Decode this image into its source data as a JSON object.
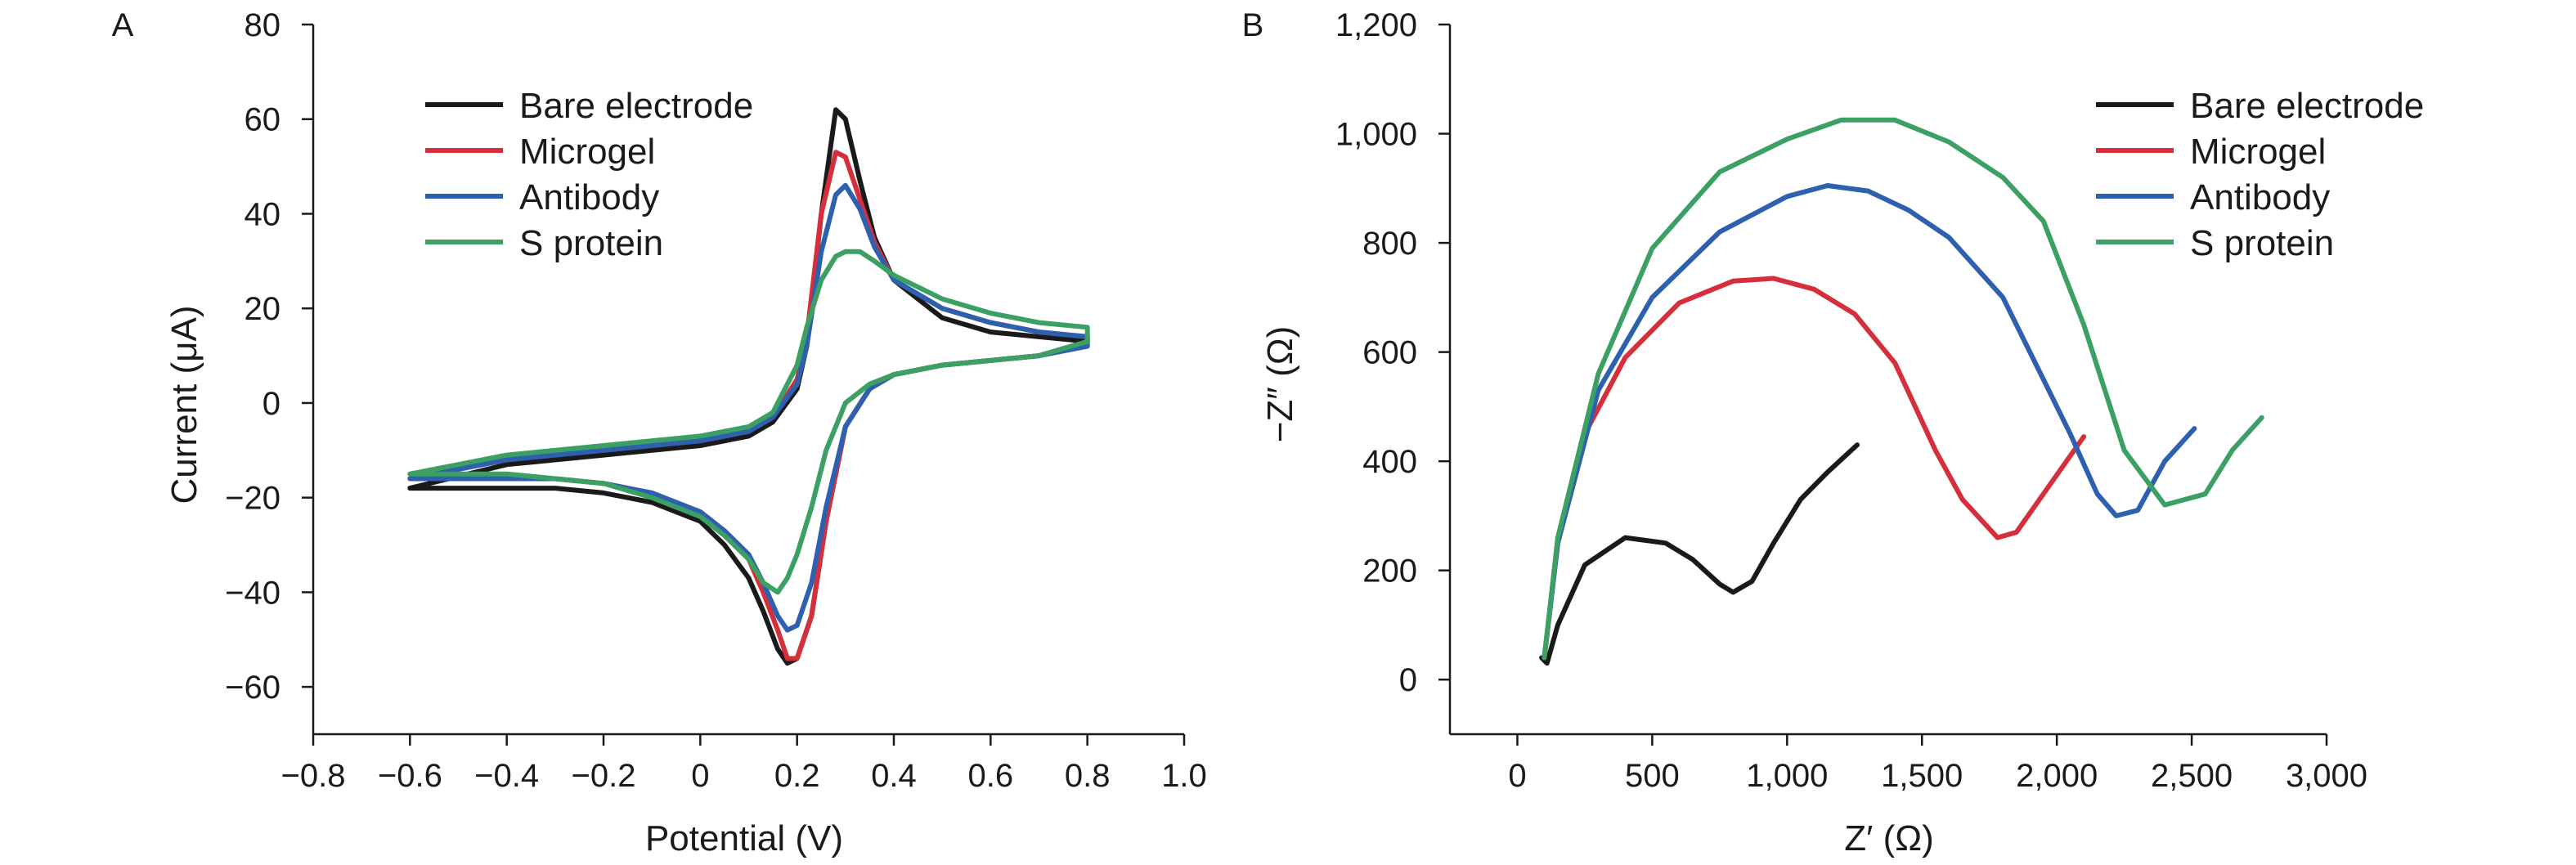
{
  "chart_data": [
    {
      "panel": "A",
      "type": "line",
      "xlabel": "Potential (V)",
      "ylabel": "Current (μA)",
      "xlim": [
        -0.8,
        1.0
      ],
      "ylim": [
        -70,
        80
      ],
      "xticks": [
        -0.8,
        -0.6,
        -0.4,
        -0.2,
        0,
        0.2,
        0.4,
        0.6,
        0.8,
        1.0
      ],
      "xtick_labels": [
        "−0.8",
        "−0.6",
        "−0.4",
        "−0.2",
        "0",
        "0.2",
        "0.4",
        "0.6",
        "0.8",
        "1.0"
      ],
      "yticks": [
        -60,
        -40,
        -20,
        0,
        20,
        40,
        60,
        80
      ],
      "ytick_labels": [
        "−60",
        "−40",
        "−20",
        "0",
        "20",
        "40",
        "60",
        "80"
      ],
      "grid": false,
      "legend_position": "top-left",
      "series": [
        {
          "name": "Bare electrode",
          "color": "#1a1a1a",
          "x": [
            -0.6,
            -0.4,
            -0.2,
            0,
            0.1,
            0.15,
            0.2,
            0.22,
            0.25,
            0.28,
            0.3,
            0.33,
            0.36,
            0.4,
            0.5,
            0.6,
            0.7,
            0.8,
            0.8,
            0.7,
            0.6,
            0.5,
            0.4,
            0.35,
            0.3,
            0.26,
            0.23,
            0.2,
            0.18,
            0.16,
            0.13,
            0.1,
            0.05,
            0,
            -0.1,
            -0.2,
            -0.3,
            -0.4,
            -0.5,
            -0.6
          ],
          "y": [
            -18,
            -13,
            -11,
            -9,
            -7,
            -4,
            3,
            12,
            40,
            62,
            60,
            47,
            35,
            26,
            18,
            15,
            14,
            13,
            13,
            10,
            9,
            8,
            6,
            3,
            -5,
            -25,
            -45,
            -54,
            -55,
            -52,
            -44,
            -37,
            -30,
            -25,
            -21,
            -19,
            -18,
            -18,
            -18,
            -18
          ]
        },
        {
          "name": "Microgel",
          "color": "#d62f3c",
          "x": [
            -0.6,
            -0.4,
            -0.2,
            0,
            0.1,
            0.15,
            0.2,
            0.22,
            0.25,
            0.28,
            0.3,
            0.33,
            0.36,
            0.4,
            0.5,
            0.6,
            0.7,
            0.8,
            0.8,
            0.7,
            0.6,
            0.5,
            0.4,
            0.35,
            0.3,
            0.26,
            0.23,
            0.2,
            0.18,
            0.16,
            0.13,
            0.1,
            0.05,
            0,
            -0.1,
            -0.2,
            -0.3,
            -0.4,
            -0.5,
            -0.6
          ],
          "y": [
            -16,
            -12,
            -10,
            -8,
            -6,
            -3,
            5,
            14,
            40,
            53,
            52,
            43,
            34,
            26,
            20,
            17,
            15,
            14,
            13,
            10,
            9,
            8,
            6,
            3,
            -5,
            -25,
            -45,
            -54,
            -54,
            -48,
            -40,
            -33,
            -27,
            -23,
            -19,
            -17,
            -16,
            -16,
            -16,
            -16
          ]
        },
        {
          "name": "Antibody",
          "color": "#2e60b0",
          "x": [
            -0.6,
            -0.4,
            -0.2,
            0,
            0.1,
            0.15,
            0.2,
            0.22,
            0.25,
            0.28,
            0.3,
            0.33,
            0.36,
            0.4,
            0.5,
            0.6,
            0.7,
            0.8,
            0.8,
            0.7,
            0.6,
            0.5,
            0.4,
            0.35,
            0.3,
            0.26,
            0.23,
            0.2,
            0.18,
            0.16,
            0.13,
            0.1,
            0.05,
            0,
            -0.1,
            -0.2,
            -0.3,
            -0.4,
            -0.5,
            -0.6
          ],
          "y": [
            -16,
            -12,
            -10,
            -8,
            -6,
            -3,
            4,
            12,
            32,
            44,
            46,
            41,
            33,
            26,
            20,
            17,
            15,
            14,
            12,
            10,
            9,
            8,
            6,
            3,
            -5,
            -22,
            -38,
            -47,
            -48,
            -45,
            -38,
            -32,
            -27,
            -23,
            -19,
            -17,
            -16,
            -16,
            -16,
            -16
          ]
        },
        {
          "name": "S protein",
          "color": "#3ca064",
          "x": [
            -0.6,
            -0.4,
            -0.2,
            0,
            0.1,
            0.15,
            0.2,
            0.22,
            0.25,
            0.28,
            0.3,
            0.33,
            0.36,
            0.4,
            0.5,
            0.6,
            0.7,
            0.8,
            0.8,
            0.7,
            0.6,
            0.5,
            0.4,
            0.35,
            0.3,
            0.26,
            0.23,
            0.2,
            0.18,
            0.16,
            0.13,
            0.1,
            0.05,
            0,
            -0.1,
            -0.2,
            -0.3,
            -0.4,
            -0.5,
            -0.6
          ],
          "y": [
            -15,
            -11,
            -9,
            -7,
            -5,
            -2,
            8,
            16,
            26,
            31,
            32,
            32,
            30,
            27,
            22,
            19,
            17,
            16,
            13,
            10,
            9,
            8,
            6,
            4,
            0,
            -10,
            -22,
            -32,
            -37,
            -40,
            -38,
            -33,
            -28,
            -24,
            -20,
            -17,
            -16,
            -15,
            -15,
            -15
          ]
        }
      ]
    },
    {
      "panel": "B",
      "type": "line",
      "xlabel": "Z′ (Ω)",
      "ylabel": "−Z″ (Ω)",
      "xlim": [
        -250,
        3000
      ],
      "ylim": [
        -100,
        1200
      ],
      "xticks": [
        0,
        500,
        1000,
        1500,
        2000,
        2500,
        3000
      ],
      "xtick_labels": [
        "0",
        "500",
        "1,000",
        "1,500",
        "2,000",
        "2,500",
        "3,000"
      ],
      "yticks": [
        0,
        200,
        400,
        600,
        800,
        1000,
        1200
      ],
      "ytick_labels": [
        "0",
        "200",
        "400",
        "600",
        "800",
        "1,000",
        "1,200"
      ],
      "grid": false,
      "legend_position": "top-right",
      "series": [
        {
          "name": "Bare electrode",
          "color": "#1a1a1a",
          "x": [
            90,
            110,
            150,
            250,
            400,
            550,
            650,
            750,
            800,
            870,
            950,
            1050,
            1150,
            1260
          ],
          "y": [
            40,
            30,
            100,
            210,
            260,
            250,
            220,
            175,
            160,
            180,
            250,
            330,
            380,
            430
          ]
        },
        {
          "name": "Microgel",
          "color": "#d62f3c",
          "x": [
            100,
            150,
            250,
            400,
            600,
            800,
            950,
            1100,
            1250,
            1400,
            1550,
            1650,
            1780,
            1850,
            1950,
            2100
          ],
          "y": [
            40,
            250,
            450,
            590,
            690,
            730,
            735,
            715,
            670,
            580,
            420,
            330,
            260,
            270,
            340,
            445
          ]
        },
        {
          "name": "Antibody",
          "color": "#2e60b0",
          "x": [
            100,
            150,
            300,
            500,
            750,
            1000,
            1150,
            1300,
            1450,
            1600,
            1800,
            1950,
            2050,
            2150,
            2220,
            2300,
            2400,
            2510
          ],
          "y": [
            40,
            250,
            530,
            700,
            820,
            885,
            905,
            895,
            860,
            810,
            700,
            550,
            450,
            340,
            300,
            310,
            400,
            460
          ]
        },
        {
          "name": "S protein",
          "color": "#3ca064",
          "x": [
            100,
            150,
            300,
            500,
            750,
            1000,
            1200,
            1400,
            1600,
            1800,
            1950,
            2100,
            2250,
            2400,
            2550,
            2650,
            2760
          ],
          "y": [
            40,
            260,
            560,
            790,
            930,
            990,
            1025,
            1025,
            985,
            920,
            840,
            650,
            420,
            320,
            340,
            420,
            480
          ]
        }
      ]
    }
  ]
}
